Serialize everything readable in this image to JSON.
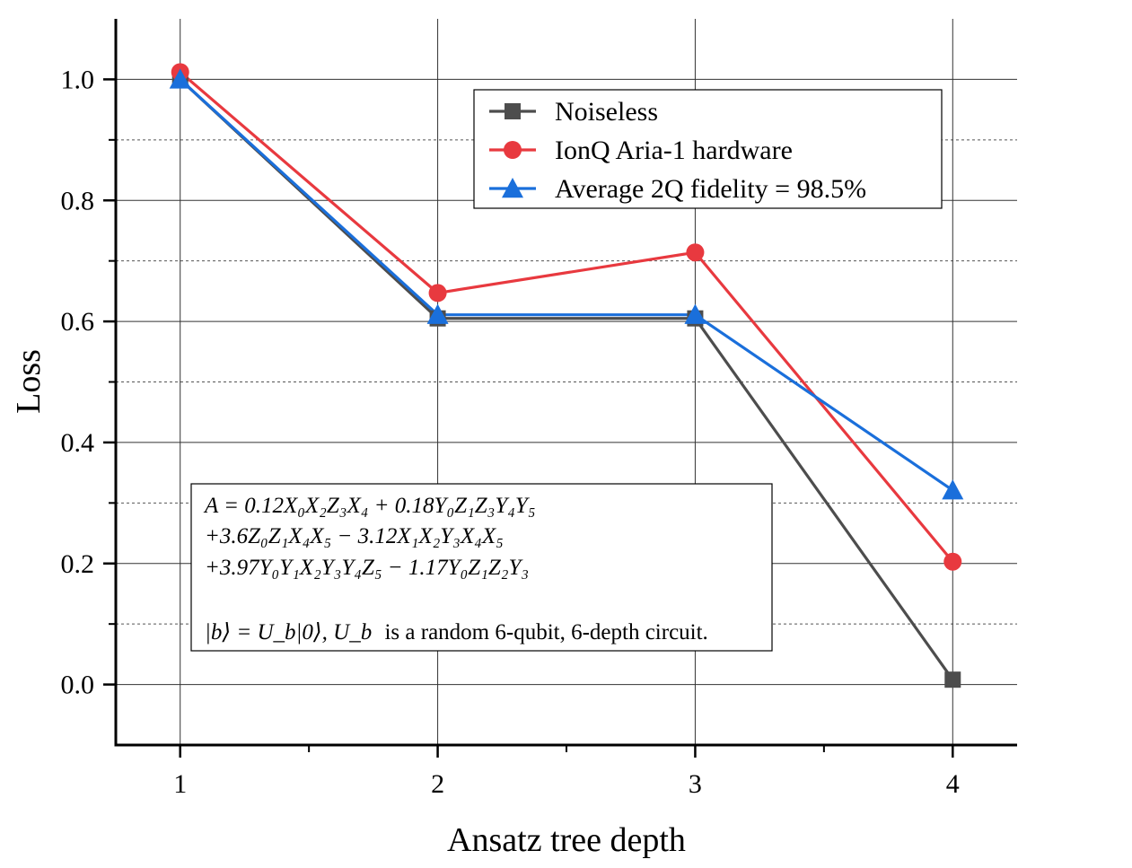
{
  "chart_data": {
    "type": "line",
    "xlabel": "Ansatz tree depth",
    "ylabel": "Loss",
    "x": [
      1,
      2,
      3,
      4
    ],
    "xlim": [
      0.75,
      4.25
    ],
    "ylim": [
      -0.1,
      1.1
    ],
    "x_ticks": [
      1,
      2,
      3,
      4
    ],
    "x_tick_labels": [
      "1",
      "2",
      "3",
      "4"
    ],
    "y_ticks": [
      0.0,
      0.2,
      0.4,
      0.6,
      0.8,
      1.0
    ],
    "y_tick_labels": [
      "0.0",
      "0.2",
      "0.4",
      "0.6",
      "0.8",
      "1.0"
    ],
    "y_minor_grid": [
      0.1,
      0.3,
      0.5,
      0.7,
      0.9
    ],
    "grid": true,
    "legend_position": "top-right",
    "series": [
      {
        "name": "Noiseless",
        "values": [
          1.0,
          0.605,
          0.605,
          0.008
        ],
        "color": "#4d4d4d",
        "marker": "square"
      },
      {
        "name": "IonQ Aria-1 hardware",
        "values": [
          1.012,
          0.647,
          0.714,
          0.203
        ],
        "color": "#e8393f",
        "marker": "circle"
      },
      {
        "name": "Average 2Q fidelity = 98.5%",
        "values": [
          1.0,
          0.611,
          0.611,
          0.321
        ],
        "color": "#1a6fdb",
        "marker": "triangle"
      }
    ],
    "annotation": {
      "line1": "A = 0.12X₀X₂Z₃X₄ + 0.18Y₀Z₁Z₃Y₄Y₅",
      "line2": "+3.6Z₀Z₁X₄X₅ − 3.12X₁X₂Y₃X₄X₅",
      "line3": "+3.97Y₀Y₁X₂Y₃Y₄Z₅ − 1.17Y₀Z₁Z₂Y₃",
      "line4_math": "|b⟩ = U_b|0⟩,  U_b",
      "line4_text": "is a random 6-qubit, 6-depth circuit."
    }
  }
}
